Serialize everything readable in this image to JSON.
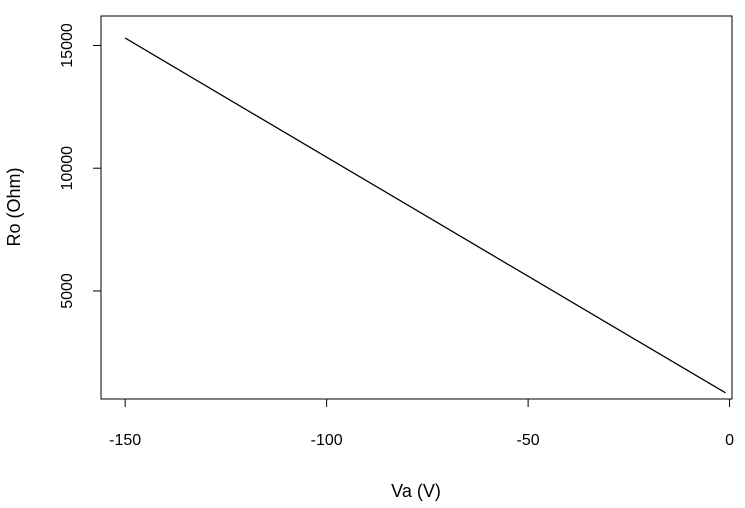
{
  "chart_data": {
    "type": "line",
    "title": "",
    "xlabel": "Va (V)",
    "ylabel": "Ro (Ohm)",
    "xlim": [
      -156,
      0.6
    ],
    "ylim": [
      600,
      16200
    ],
    "xticks": [
      -150,
      -100,
      -50,
      0
    ],
    "xtick_labels": [
      "-150",
      "-100",
      "-50",
      "0"
    ],
    "yticks": [
      5000,
      10000,
      15000
    ],
    "ytick_labels": [
      "5000",
      "10000",
      "15000"
    ],
    "grid": false,
    "legend": "none",
    "series": [
      {
        "color": "#000000",
        "x": [
          -150,
          -100,
          -50,
          -1
        ],
        "y": [
          15300,
          10450,
          5600,
          850
        ]
      }
    ]
  }
}
